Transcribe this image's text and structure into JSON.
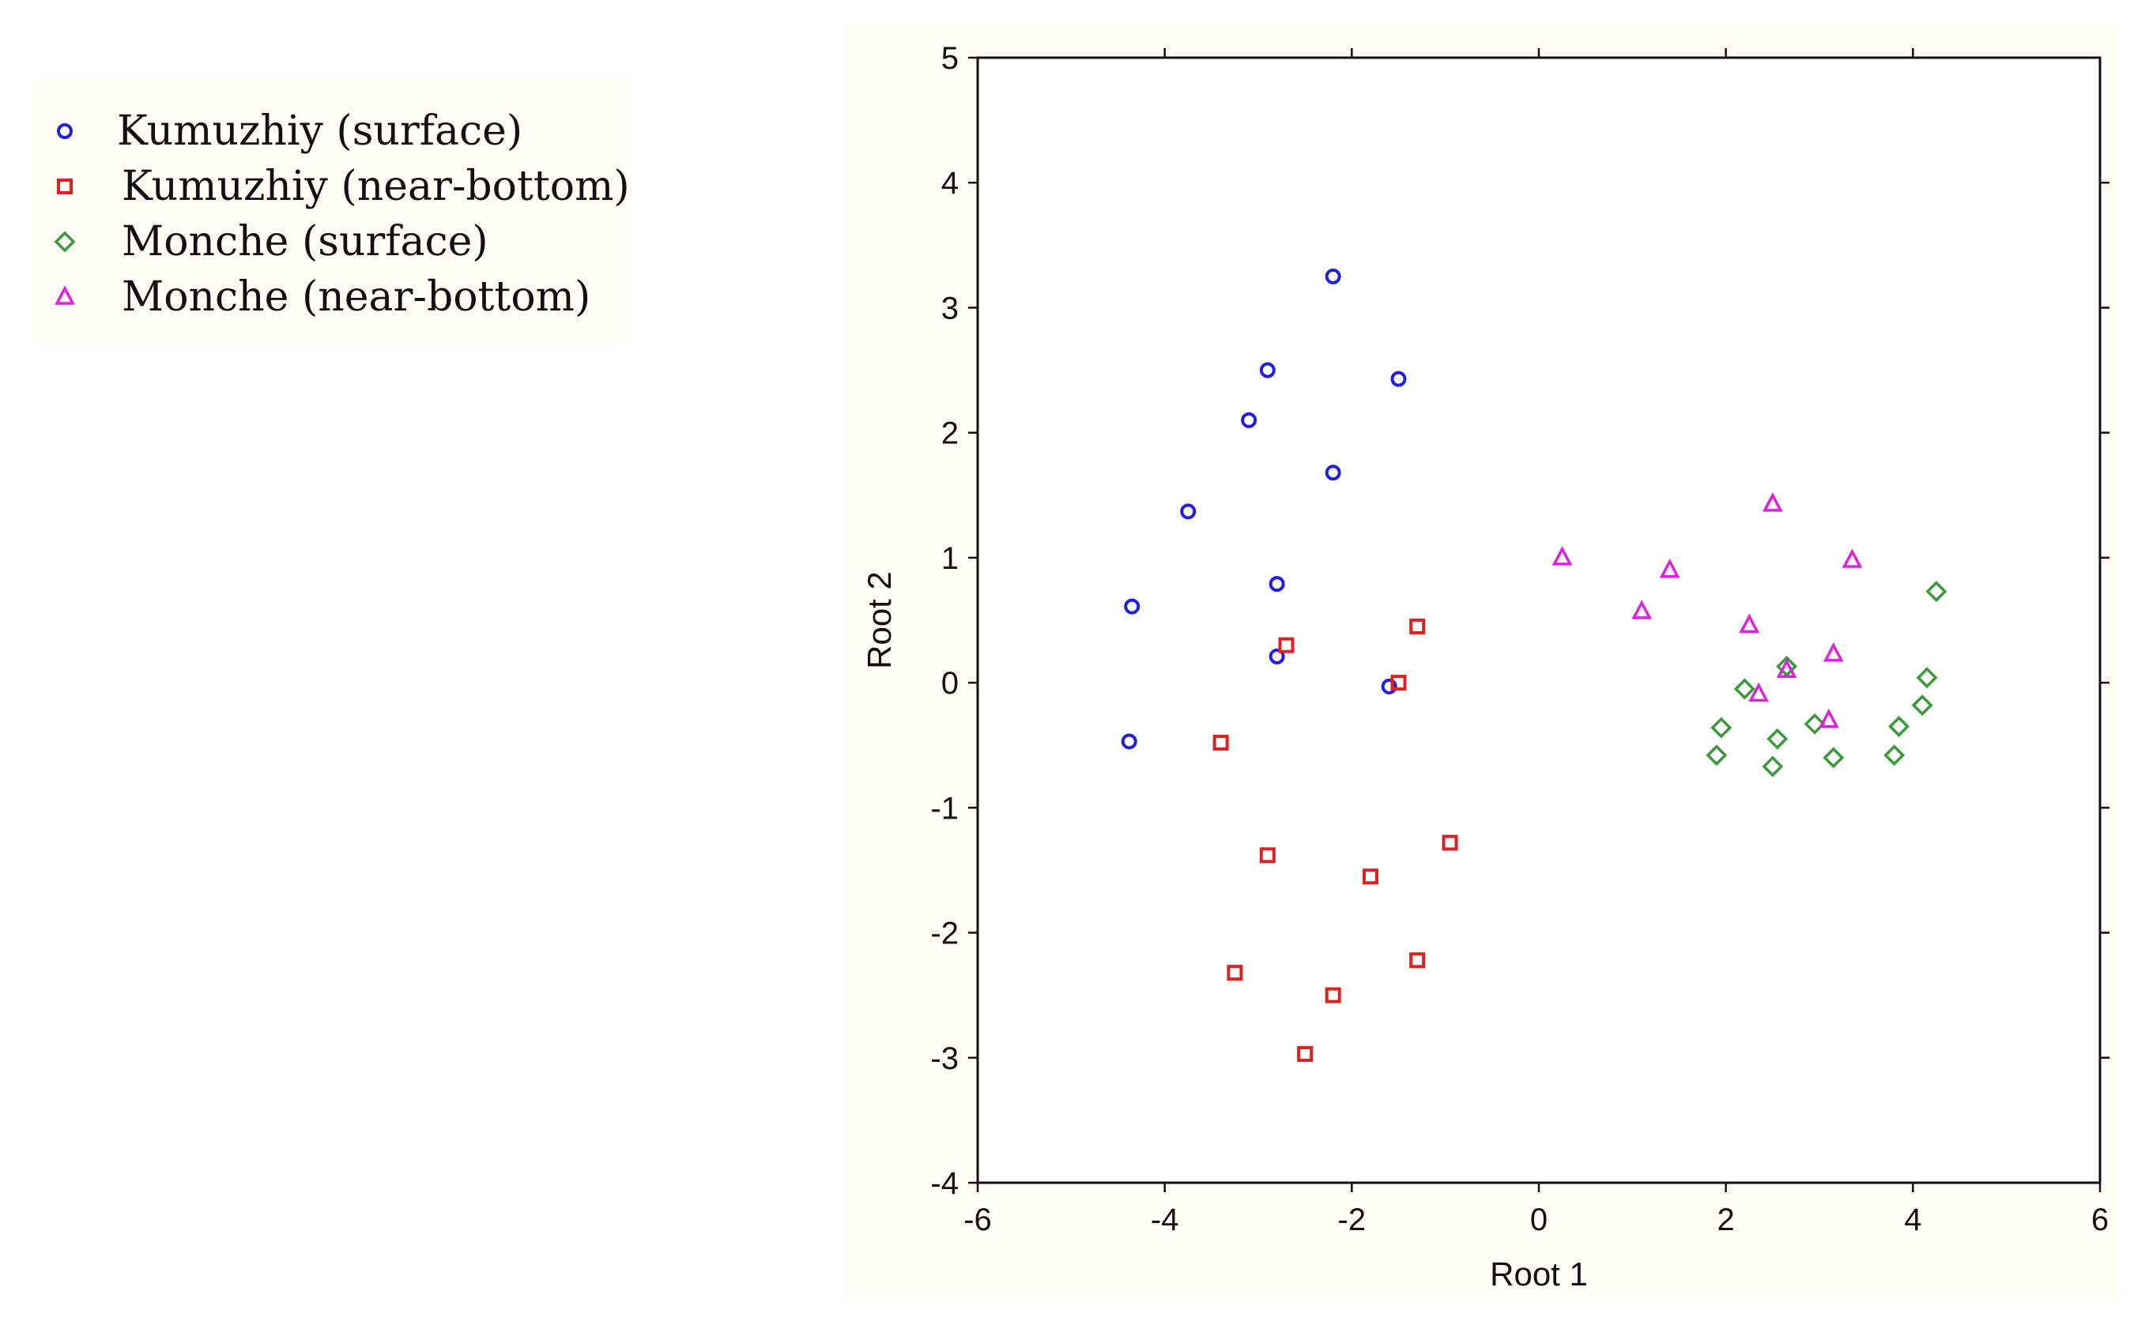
{
  "chart_data": {
    "type": "scatter",
    "title": "",
    "xlabel": "Root 1",
    "ylabel": "Root 2",
    "xlim": [
      -6,
      6
    ],
    "ylim": [
      -4,
      5
    ],
    "xticks": [
      -6,
      -4,
      -2,
      0,
      2,
      4,
      6
    ],
    "yticks": [
      -4,
      -3,
      -2,
      -1,
      0,
      1,
      2,
      3,
      4,
      5
    ],
    "grid": false,
    "legend_position": "top-left",
    "series": [
      {
        "name": "Kumuzhiy (surface)",
        "marker": "circle",
        "color": "#1f1fe0",
        "points": [
          [
            -2.2,
            3.25
          ],
          [
            -2.9,
            2.5
          ],
          [
            -1.5,
            2.43
          ],
          [
            -3.1,
            2.1
          ],
          [
            -2.2,
            1.68
          ],
          [
            -3.75,
            1.37
          ],
          [
            -4.35,
            0.61
          ],
          [
            -2.8,
            0.79
          ],
          [
            -2.8,
            0.21
          ],
          [
            -1.6,
            -0.03
          ],
          [
            -4.38,
            -0.47
          ]
        ]
      },
      {
        "name": "Kumuzhiy (near-bottom)",
        "marker": "square",
        "color": "#e02020",
        "points": [
          [
            -1.3,
            0.45
          ],
          [
            -2.7,
            0.3
          ],
          [
            -1.5,
            0.0
          ],
          [
            -3.4,
            -0.48
          ],
          [
            -0.95,
            -1.28
          ],
          [
            -2.9,
            -1.38
          ],
          [
            -1.8,
            -1.55
          ],
          [
            -3.25,
            -2.32
          ],
          [
            -2.2,
            -2.5
          ],
          [
            -1.3,
            -2.22
          ],
          [
            -2.5,
            -2.97
          ]
        ]
      },
      {
        "name": "Monche (surface)",
        "marker": "diamond",
        "color": "#3a9a3a",
        "points": [
          [
            4.25,
            0.73
          ],
          [
            2.65,
            0.13
          ],
          [
            4.15,
            0.04
          ],
          [
            2.2,
            -0.05
          ],
          [
            4.1,
            -0.18
          ],
          [
            1.95,
            -0.36
          ],
          [
            2.95,
            -0.33
          ],
          [
            3.85,
            -0.35
          ],
          [
            2.55,
            -0.45
          ],
          [
            1.9,
            -0.58
          ],
          [
            3.15,
            -0.6
          ],
          [
            3.8,
            -0.58
          ],
          [
            2.5,
            -0.67
          ]
        ]
      },
      {
        "name": "Monche (near-bottom)",
        "marker": "triangle",
        "color": "#e020e0",
        "points": [
          [
            2.5,
            1.43
          ],
          [
            0.25,
            1.0
          ],
          [
            3.35,
            0.98
          ],
          [
            1.4,
            0.9
          ],
          [
            1.1,
            0.57
          ],
          [
            2.25,
            0.46
          ],
          [
            3.15,
            0.23
          ],
          [
            2.65,
            0.1
          ],
          [
            2.35,
            -0.09
          ],
          [
            3.1,
            -0.3
          ]
        ]
      }
    ]
  }
}
